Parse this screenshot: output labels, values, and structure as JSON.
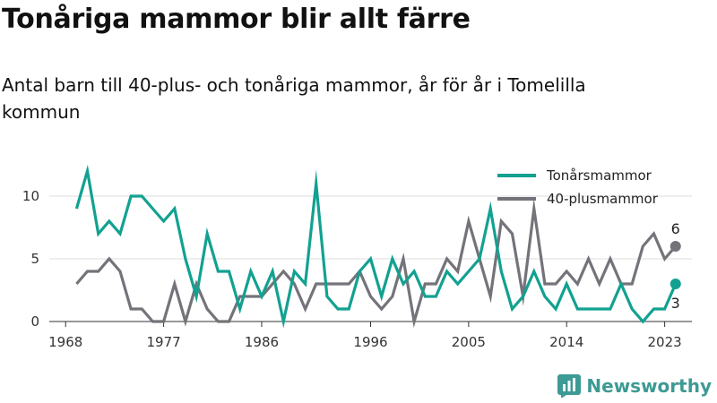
{
  "header": {
    "title": "Tonåriga mammor blir allt färre",
    "subtitle": "Antal barn till 40-plus- och tonåriga mammor, år för år i Tomelilla kommun"
  },
  "brand": {
    "name": "Newsworthy",
    "icon": "newsworthy-logo-icon",
    "color": "#3d9a94"
  },
  "chart_data": {
    "type": "line",
    "title": "Tonåriga mammor blir allt färre",
    "subtitle": "Antal barn till 40-plus- och tonåriga mammor, år för år i Tomelilla kommun",
    "xlabel": "",
    "ylabel": "",
    "x_ticks": [
      "1968",
      "1977",
      "1986",
      "1996",
      "2005",
      "2014",
      "2023"
    ],
    "y_ticks": [
      "0",
      "5",
      "10"
    ],
    "ylim": [
      0,
      12
    ],
    "grid": "horizontal",
    "legend_position": "top-right",
    "series": [
      {
        "name": "Tonårsmammor",
        "color": "#12a191",
        "end_label": "3",
        "points": [
          [
            1969,
            9
          ],
          [
            1970,
            12
          ],
          [
            1971,
            7
          ],
          [
            1972,
            8
          ],
          [
            1973,
            7
          ],
          [
            1974,
            10
          ],
          [
            1975,
            10
          ],
          [
            1976,
            9
          ],
          [
            1977,
            8
          ],
          [
            1978,
            9
          ],
          [
            1979,
            5
          ],
          [
            1980,
            2
          ],
          [
            1981,
            7
          ],
          [
            1982,
            4
          ],
          [
            1983,
            4
          ],
          [
            1984,
            1
          ],
          [
            1985,
            4
          ],
          [
            1986,
            2
          ],
          [
            1987,
            4
          ],
          [
            1988,
            0
          ],
          [
            1989,
            4
          ],
          [
            1990,
            3
          ],
          [
            1991,
            11
          ],
          [
            1992,
            2
          ],
          [
            1993,
            1
          ],
          [
            1994,
            1
          ],
          [
            1995,
            4
          ],
          [
            1996,
            5
          ],
          [
            1997,
            2
          ],
          [
            1998,
            5
          ],
          [
            1999,
            3
          ],
          [
            2000,
            4
          ],
          [
            2001,
            2
          ],
          [
            2002,
            2
          ],
          [
            2003,
            4
          ],
          [
            2004,
            3
          ],
          [
            2005,
            4
          ],
          [
            2006,
            5
          ],
          [
            2007,
            9
          ],
          [
            2008,
            4
          ],
          [
            2009,
            1
          ],
          [
            2010,
            2
          ],
          [
            2011,
            4
          ],
          [
            2012,
            2
          ],
          [
            2013,
            1
          ],
          [
            2014,
            3
          ],
          [
            2015,
            1
          ],
          [
            2016,
            1
          ],
          [
            2017,
            1
          ],
          [
            2018,
            1
          ],
          [
            2019,
            3
          ],
          [
            2020,
            1
          ],
          [
            2021,
            0
          ],
          [
            2022,
            1
          ],
          [
            2023,
            1
          ],
          [
            2024,
            3
          ]
        ]
      },
      {
        "name": "40-plusmammor",
        "color": "#75737a",
        "end_label": "6",
        "points": [
          [
            1969,
            3
          ],
          [
            1970,
            4
          ],
          [
            1971,
            4
          ],
          [
            1972,
            5
          ],
          [
            1973,
            4
          ],
          [
            1974,
            1
          ],
          [
            1975,
            1
          ],
          [
            1976,
            0
          ],
          [
            1977,
            0
          ],
          [
            1978,
            3
          ],
          [
            1979,
            0
          ],
          [
            1980,
            3
          ],
          [
            1981,
            1
          ],
          [
            1982,
            0
          ],
          [
            1983,
            0
          ],
          [
            1984,
            2
          ],
          [
            1985,
            2
          ],
          [
            1986,
            2
          ],
          [
            1987,
            3
          ],
          [
            1988,
            4
          ],
          [
            1989,
            3
          ],
          [
            1990,
            1
          ],
          [
            1991,
            3
          ],
          [
            1992,
            3
          ],
          [
            1993,
            3
          ],
          [
            1994,
            3
          ],
          [
            1995,
            4
          ],
          [
            1996,
            2
          ],
          [
            1997,
            1
          ],
          [
            1998,
            2
          ],
          [
            1999,
            5
          ],
          [
            2000,
            0
          ],
          [
            2001,
            3
          ],
          [
            2002,
            3
          ],
          [
            2003,
            5
          ],
          [
            2004,
            4
          ],
          [
            2005,
            8
          ],
          [
            2006,
            5
          ],
          [
            2007,
            2
          ],
          [
            2008,
            8
          ],
          [
            2009,
            7
          ],
          [
            2010,
            2
          ],
          [
            2011,
            9
          ],
          [
            2012,
            3
          ],
          [
            2013,
            3
          ],
          [
            2014,
            4
          ],
          [
            2015,
            3
          ],
          [
            2016,
            5
          ],
          [
            2017,
            3
          ],
          [
            2018,
            5
          ],
          [
            2019,
            3
          ],
          [
            2020,
            3
          ],
          [
            2021,
            6
          ],
          [
            2022,
            7
          ],
          [
            2023,
            5
          ],
          [
            2024,
            6
          ]
        ]
      }
    ]
  }
}
